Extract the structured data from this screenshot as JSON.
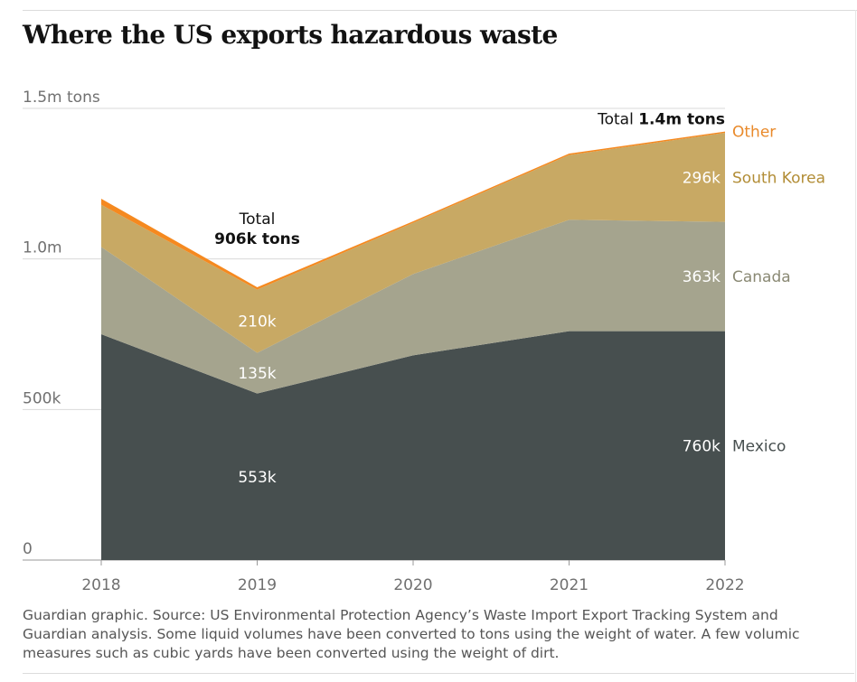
{
  "title": "Where the US exports hazardous waste",
  "source_note": "Guardian graphic. Source: US Environmental Protection Agency’s Waste Import Export Tracking System and Guardian analysis. Some liquid volumes have been converted to tons using the weight of water. A few volumic measures such as cubic yards have been converted using the weight of dirt.",
  "chart_data": {
    "type": "area",
    "stacked": true,
    "x": [
      "2018",
      "2019",
      "2020",
      "2021",
      "2022"
    ],
    "series": [
      {
        "name": "Mexico",
        "values": [
          750000,
          553000,
          680000,
          760000,
          760000
        ],
        "color": "#474f4f"
      },
      {
        "name": "Canada",
        "values": [
          290000,
          135000,
          270000,
          370000,
          363000
        ],
        "color": "#a5a48e"
      },
      {
        "name": "South Korea",
        "values": [
          140000,
          210000,
          170000,
          215000,
          296000
        ],
        "color": "#c8a964"
      },
      {
        "name": "Other",
        "values": [
          20000,
          8000,
          5000,
          5000,
          4000
        ],
        "color": "#f5891f"
      }
    ],
    "ylim": [
      0,
      1500000
    ],
    "y_ticks": [
      {
        "value": 0,
        "label": "0"
      },
      {
        "value": 500000,
        "label": "500k"
      },
      {
        "value": 1000000,
        "label": "1.0m"
      },
      {
        "value": 1500000,
        "label": "1.5m tons"
      }
    ],
    "grid": true,
    "legend": "direct labels at right",
    "annotations": {
      "total_2019_line1": "Total",
      "total_2019_line2": "906k tons",
      "total_2022_prefix": "Total ",
      "total_2022_value": "1.4m tons"
    },
    "value_labels": [
      {
        "x": "2019",
        "series": "Mexico",
        "text": "553k"
      },
      {
        "x": "2019",
        "series": "Canada",
        "text": "135k"
      },
      {
        "x": "2019",
        "series": "South Korea",
        "text": "210k"
      },
      {
        "x": "2022",
        "series": "Mexico",
        "text": "760k"
      },
      {
        "x": "2022",
        "series": "Canada",
        "text": "363k"
      },
      {
        "x": "2022",
        "series": "South Korea",
        "text": "296k"
      }
    ],
    "label_colors": {
      "Mexico": "#474f4f",
      "Canada": "#8a8974",
      "South Korea": "#b28d36",
      "Other": "#e98a2b",
      "axis": "#707070",
      "annotation": "#121212"
    }
  }
}
